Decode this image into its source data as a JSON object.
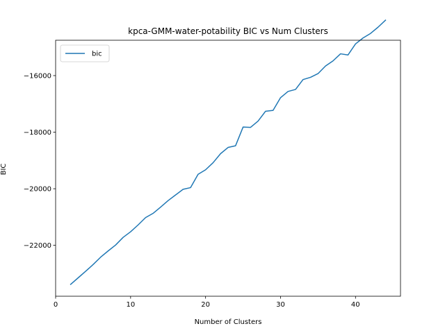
{
  "chart_data": {
    "type": "line",
    "title": "kpca-GMM-water-potability BIC vs Num Clusters",
    "xlabel": "Number of Clusters",
    "ylabel": "BIC",
    "xlim": [
      0,
      46
    ],
    "ylim": [
      -23800,
      -14750
    ],
    "xticks": [
      0,
      10,
      20,
      30,
      40
    ],
    "yticks": [
      -22000,
      -20000,
      -18000,
      -16000
    ],
    "grid": false,
    "legend_position": "top-left",
    "series": [
      {
        "name": "bic",
        "color": "#1f77b4",
        "x": [
          2,
          3,
          4,
          5,
          6,
          7,
          8,
          9,
          10,
          11,
          12,
          13,
          14,
          15,
          16,
          17,
          18,
          19,
          20,
          21,
          22,
          23,
          24,
          25,
          26,
          27,
          28,
          29,
          30,
          31,
          32,
          33,
          34,
          35,
          36,
          37,
          38,
          39,
          40,
          41,
          42,
          43,
          44
        ],
        "y": [
          -23380,
          -23150,
          -22920,
          -22680,
          -22420,
          -22200,
          -21990,
          -21720,
          -21520,
          -21280,
          -21020,
          -20870,
          -20650,
          -20420,
          -20220,
          -20020,
          -19960,
          -19490,
          -19330,
          -19080,
          -18760,
          -18540,
          -18480,
          -17820,
          -17830,
          -17610,
          -17260,
          -17230,
          -16780,
          -16560,
          -16490,
          -16140,
          -16060,
          -15930,
          -15660,
          -15480,
          -15230,
          -15270,
          -14880,
          -14670,
          -14510,
          -14290,
          -14040
        ]
      }
    ]
  }
}
